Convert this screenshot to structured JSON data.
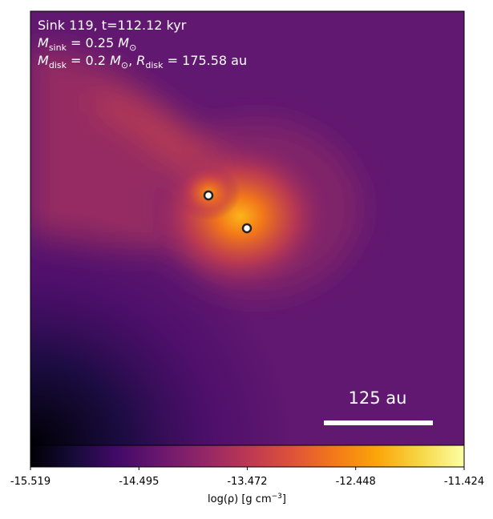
{
  "chart_data": {
    "type": "density-map",
    "annotations": [
      {
        "parts": [
          "Sink 119, t=112.12 kyr"
        ]
      },
      {
        "parts": [
          "M",
          "sink",
          " = 0.25 ",
          "M",
          "⊙"
        ]
      },
      {
        "parts": [
          "M",
          "disk",
          " = 0.2 ",
          "M",
          "⊙",
          ", ",
          "R",
          "disk",
          " = 175.58 au"
        ]
      }
    ],
    "scale_bar": {
      "label": "125 au"
    },
    "colorbar": {
      "cmap": "inferno",
      "xlim": [
        -15.519,
        -11.424
      ],
      "xticks": [
        -15.519,
        -14.495,
        -13.472,
        -12.448,
        -11.424
      ],
      "label": {
        "text": "log(ρ) [g cm",
        "exponent": "−3",
        "close": "]"
      }
    }
  }
}
